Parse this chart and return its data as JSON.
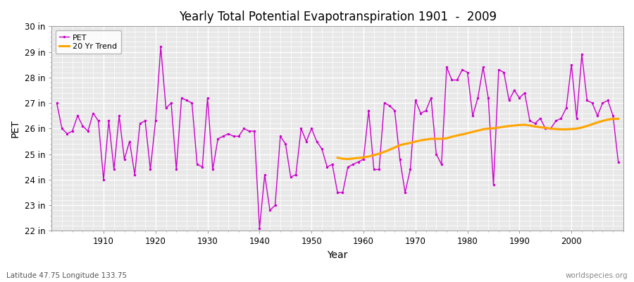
{
  "title": "Yearly Total Potential Evapotranspiration 1901  -  2009",
  "xlabel": "Year",
  "ylabel": "PET",
  "bottom_left_label": "Latitude 47.75 Longitude 133.75",
  "bottom_right_label": "worldspecies.org",
  "pet_color": "#cc00cc",
  "trend_color": "#FFA500",
  "fig_bg_color": "#ffffff",
  "plot_bg_color": "#e8e8e8",
  "ylim": [
    22,
    30
  ],
  "yticks": [
    22,
    23,
    24,
    25,
    26,
    27,
    28,
    29,
    30
  ],
  "ytick_labels": [
    "22 in",
    "23 in",
    "24 in",
    "25 in",
    "26 in",
    "27 in",
    "28 in",
    "29 in",
    "30 in"
  ],
  "years": [
    1901,
    1902,
    1903,
    1904,
    1905,
    1906,
    1907,
    1908,
    1909,
    1910,
    1911,
    1912,
    1913,
    1914,
    1915,
    1916,
    1917,
    1918,
    1919,
    1920,
    1921,
    1922,
    1923,
    1924,
    1925,
    1926,
    1927,
    1928,
    1929,
    1930,
    1931,
    1932,
    1933,
    1934,
    1935,
    1936,
    1937,
    1938,
    1939,
    1940,
    1941,
    1942,
    1943,
    1944,
    1945,
    1946,
    1947,
    1948,
    1949,
    1950,
    1951,
    1952,
    1953,
    1954,
    1955,
    1956,
    1957,
    1958,
    1959,
    1960,
    1961,
    1962,
    1963,
    1964,
    1965,
    1966,
    1967,
    1968,
    1969,
    1970,
    1971,
    1972,
    1973,
    1974,
    1975,
    1976,
    1977,
    1978,
    1979,
    1980,
    1981,
    1982,
    1983,
    1984,
    1985,
    1986,
    1987,
    1988,
    1989,
    1990,
    1991,
    1992,
    1993,
    1994,
    1995,
    1996,
    1997,
    1998,
    1999,
    2000,
    2001,
    2002,
    2003,
    2004,
    2005,
    2006,
    2007,
    2008,
    2009
  ],
  "pet_values": [
    27.0,
    26.0,
    25.8,
    25.9,
    26.5,
    26.1,
    25.9,
    26.6,
    26.3,
    24.0,
    26.3,
    24.4,
    26.5,
    24.8,
    25.5,
    24.2,
    26.2,
    26.3,
    24.4,
    26.3,
    29.2,
    26.8,
    27.0,
    24.4,
    27.2,
    27.1,
    27.0,
    24.6,
    24.5,
    27.2,
    24.4,
    25.6,
    25.7,
    25.8,
    25.7,
    25.7,
    26.0,
    25.9,
    25.9,
    22.1,
    24.2,
    22.8,
    23.0,
    25.7,
    25.4,
    24.1,
    24.2,
    26.0,
    25.5,
    26.0,
    25.5,
    25.2,
    24.5,
    24.6,
    23.5,
    23.5,
    24.5,
    24.6,
    24.7,
    24.8,
    26.7,
    24.4,
    24.4,
    27.0,
    26.9,
    26.7,
    24.8,
    23.5,
    24.4,
    27.1,
    26.6,
    26.7,
    27.2,
    25.0,
    24.6,
    28.4,
    27.9,
    27.9,
    28.3,
    28.2,
    26.5,
    27.2,
    28.4,
    27.2,
    23.8,
    28.3,
    28.2,
    27.1,
    27.5,
    27.2,
    27.4,
    26.3,
    26.2,
    26.4,
    26.0,
    26.0,
    26.3,
    26.4,
    26.8,
    28.5,
    26.4,
    28.9,
    27.1,
    27.0,
    26.5,
    27.0,
    27.1,
    26.5,
    24.7
  ],
  "trend_values_years": [
    1955,
    1956,
    1957,
    1958,
    1959,
    1960,
    1961,
    1962,
    1963,
    1964,
    1965,
    1966,
    1967,
    1968,
    1969,
    1970,
    1971,
    1972,
    1973,
    1974,
    1975,
    1976,
    1977,
    1978,
    1979,
    1980,
    1981,
    1982,
    1983,
    1984,
    1985,
    1986,
    1987,
    1988,
    1989,
    1990,
    1991,
    1992,
    1993,
    1994,
    1995,
    1996,
    1997,
    1998,
    1999,
    2000,
    2001,
    2002,
    2003,
    2004,
    2005,
    2006,
    2007,
    2008,
    2009
  ],
  "trend_values": [
    24.86,
    24.82,
    24.81,
    24.83,
    24.85,
    24.87,
    24.91,
    24.96,
    25.02,
    25.09,
    25.17,
    25.26,
    25.35,
    25.4,
    25.44,
    25.49,
    25.54,
    25.57,
    25.6,
    25.6,
    25.6,
    25.62,
    25.68,
    25.73,
    25.77,
    25.82,
    25.87,
    25.92,
    25.97,
    26.0,
    26.01,
    26.04,
    26.07,
    26.1,
    26.12,
    26.14,
    26.15,
    26.12,
    26.08,
    26.05,
    26.03,
    26.0,
    25.98,
    25.97,
    25.97,
    25.98,
    26.0,
    26.04,
    26.1,
    26.17,
    26.24,
    26.3,
    26.35,
    26.38,
    26.38
  ]
}
